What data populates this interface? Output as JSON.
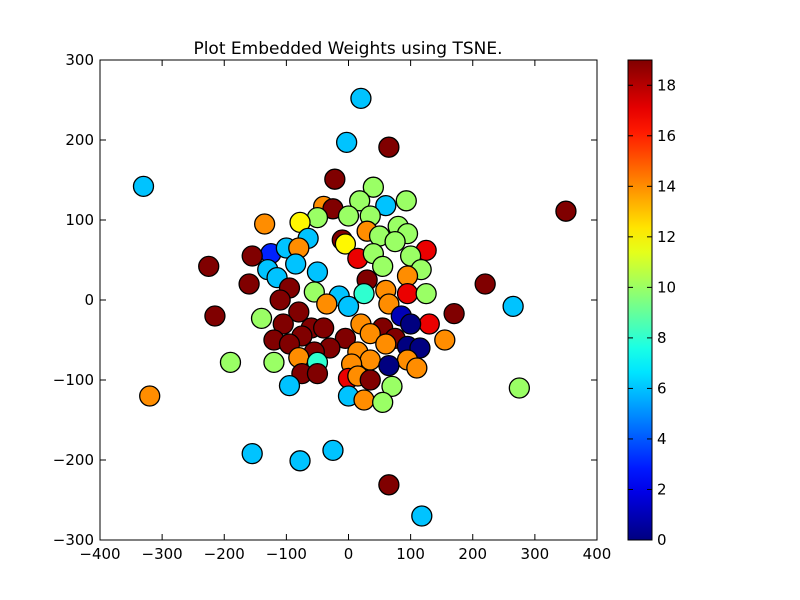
{
  "chart_data": {
    "type": "scatter",
    "title": "Plot Embedded Weights using TSNE.",
    "xlabel": "",
    "ylabel": "",
    "xlim": [
      -400,
      400
    ],
    "ylim": [
      -300,
      300
    ],
    "xticks": [
      -400,
      -300,
      -200,
      -100,
      0,
      100,
      200,
      300,
      400
    ],
    "yticks": [
      -300,
      -200,
      -100,
      0,
      100,
      200,
      300
    ],
    "grid": false,
    "colorbar": {
      "colormap": "jet",
      "range": [
        0,
        19
      ],
      "ticks": [
        0,
        2,
        4,
        6,
        8,
        10,
        12,
        14,
        16,
        18
      ]
    },
    "points": [
      {
        "x": 20,
        "y": 252,
        "c": 6
      },
      {
        "x": -3,
        "y": 197,
        "c": 6
      },
      {
        "x": 65,
        "y": 191,
        "c": 19
      },
      {
        "x": -330,
        "y": 142,
        "c": 6
      },
      {
        "x": 350,
        "y": 111,
        "c": 19
      },
      {
        "x": -22,
        "y": 151,
        "c": 19
      },
      {
        "x": 40,
        "y": 141,
        "c": 10
      },
      {
        "x": 93,
        "y": 124,
        "c": 10
      },
      {
        "x": 18,
        "y": 124,
        "c": 10
      },
      {
        "x": -40,
        "y": 117,
        "c": 14
      },
      {
        "x": -25,
        "y": 114,
        "c": 19
      },
      {
        "x": 60,
        "y": 118,
        "c": 6
      },
      {
        "x": -50,
        "y": 103,
        "c": 10
      },
      {
        "x": -78,
        "y": 97,
        "c": 12
      },
      {
        "x": -135,
        "y": 95,
        "c": 14
      },
      {
        "x": 0,
        "y": 105,
        "c": 10
      },
      {
        "x": 35,
        "y": 105,
        "c": 10
      },
      {
        "x": 80,
        "y": 92,
        "c": 10
      },
      {
        "x": 95,
        "y": 83,
        "c": 10
      },
      {
        "x": 30,
        "y": 86,
        "c": 14
      },
      {
        "x": -65,
        "y": 77,
        "c": 6
      },
      {
        "x": -10,
        "y": 75,
        "c": 19
      },
      {
        "x": 50,
        "y": 80,
        "c": 10
      },
      {
        "x": 75,
        "y": 73,
        "c": 10
      },
      {
        "x": -5,
        "y": 70,
        "c": 12
      },
      {
        "x": -125,
        "y": 58,
        "c": 3
      },
      {
        "x": -100,
        "y": 65,
        "c": 6
      },
      {
        "x": -80,
        "y": 65,
        "c": 14
      },
      {
        "x": -155,
        "y": 55,
        "c": 19
      },
      {
        "x": 125,
        "y": 62,
        "c": 17
      },
      {
        "x": 15,
        "y": 52,
        "c": 17
      },
      {
        "x": 40,
        "y": 58,
        "c": 10
      },
      {
        "x": 100,
        "y": 55,
        "c": 10
      },
      {
        "x": -85,
        "y": 45,
        "c": 6
      },
      {
        "x": -225,
        "y": 42,
        "c": 19
      },
      {
        "x": -50,
        "y": 35,
        "c": 6
      },
      {
        "x": 55,
        "y": 42,
        "c": 10
      },
      {
        "x": 117,
        "y": 38,
        "c": 10
      },
      {
        "x": -130,
        "y": 38,
        "c": 6
      },
      {
        "x": 95,
        "y": 30,
        "c": 14
      },
      {
        "x": -115,
        "y": 28,
        "c": 6
      },
      {
        "x": 30,
        "y": 25,
        "c": 19
      },
      {
        "x": -160,
        "y": 20,
        "c": 19
      },
      {
        "x": 220,
        "y": 20,
        "c": 19
      },
      {
        "x": -95,
        "y": 15,
        "c": 19
      },
      {
        "x": 60,
        "y": 12,
        "c": 14
      },
      {
        "x": -55,
        "y": 10,
        "c": 10
      },
      {
        "x": 95,
        "y": 8,
        "c": 17
      },
      {
        "x": 125,
        "y": 8,
        "c": 10
      },
      {
        "x": 25,
        "y": 8,
        "c": 8
      },
      {
        "x": -15,
        "y": 5,
        "c": 6
      },
      {
        "x": -110,
        "y": 0,
        "c": 19
      },
      {
        "x": -35,
        "y": -5,
        "c": 14
      },
      {
        "x": 0,
        "y": -8,
        "c": 6
      },
      {
        "x": 65,
        "y": -5,
        "c": 14
      },
      {
        "x": 265,
        "y": -8,
        "c": 6
      },
      {
        "x": -215,
        "y": -20,
        "c": 19
      },
      {
        "x": -80,
        "y": -15,
        "c": 19
      },
      {
        "x": 170,
        "y": -17,
        "c": 19
      },
      {
        "x": -140,
        "y": -23,
        "c": 10
      },
      {
        "x": 85,
        "y": -20,
        "c": 1
      },
      {
        "x": 130,
        "y": -30,
        "c": 17
      },
      {
        "x": -105,
        "y": -30,
        "c": 19
      },
      {
        "x": 20,
        "y": -30,
        "c": 14
      },
      {
        "x": 100,
        "y": -30,
        "c": 0
      },
      {
        "x": -60,
        "y": -35,
        "c": 19
      },
      {
        "x": -40,
        "y": -35,
        "c": 19
      },
      {
        "x": 55,
        "y": -35,
        "c": 19
      },
      {
        "x": 35,
        "y": -42,
        "c": 14
      },
      {
        "x": -75,
        "y": -45,
        "c": 19
      },
      {
        "x": -120,
        "y": -50,
        "c": 19
      },
      {
        "x": -5,
        "y": -48,
        "c": 19
      },
      {
        "x": 75,
        "y": -48,
        "c": 19
      },
      {
        "x": 155,
        "y": -50,
        "c": 14
      },
      {
        "x": -95,
        "y": -55,
        "c": 19
      },
      {
        "x": 60,
        "y": -55,
        "c": 14
      },
      {
        "x": 95,
        "y": -58,
        "c": 0
      },
      {
        "x": 115,
        "y": -60,
        "c": 0
      },
      {
        "x": -30,
        "y": -60,
        "c": 19
      },
      {
        "x": -55,
        "y": -65,
        "c": 19
      },
      {
        "x": 15,
        "y": -65,
        "c": 14
      },
      {
        "x": -80,
        "y": -72,
        "c": 14
      },
      {
        "x": 35,
        "y": -75,
        "c": 14
      },
      {
        "x": 95,
        "y": -75,
        "c": 14
      },
      {
        "x": -190,
        "y": -78,
        "c": 10
      },
      {
        "x": -120,
        "y": -78,
        "c": 10
      },
      {
        "x": -50,
        "y": -78,
        "c": 8
      },
      {
        "x": 5,
        "y": -80,
        "c": 14
      },
      {
        "x": 65,
        "y": -82,
        "c": 0
      },
      {
        "x": 110,
        "y": -85,
        "c": 14
      },
      {
        "x": -75,
        "y": -92,
        "c": 19
      },
      {
        "x": -50,
        "y": -92,
        "c": 19
      },
      {
        "x": 0,
        "y": -98,
        "c": 17
      },
      {
        "x": 15,
        "y": -95,
        "c": 14
      },
      {
        "x": 35,
        "y": -100,
        "c": 19
      },
      {
        "x": -95,
        "y": -107,
        "c": 6
      },
      {
        "x": 70,
        "y": -108,
        "c": 10
      },
      {
        "x": 275,
        "y": -110,
        "c": 10
      },
      {
        "x": 0,
        "y": -120,
        "c": 6
      },
      {
        "x": -320,
        "y": -120,
        "c": 14
      },
      {
        "x": 25,
        "y": -125,
        "c": 14
      },
      {
        "x": 55,
        "y": -128,
        "c": 10
      },
      {
        "x": -25,
        "y": -188,
        "c": 6
      },
      {
        "x": -155,
        "y": -192,
        "c": 6
      },
      {
        "x": -78,
        "y": -201,
        "c": 6
      },
      {
        "x": 65,
        "y": -231,
        "c": 19
      },
      {
        "x": 118,
        "y": -270,
        "c": 6
      }
    ]
  }
}
